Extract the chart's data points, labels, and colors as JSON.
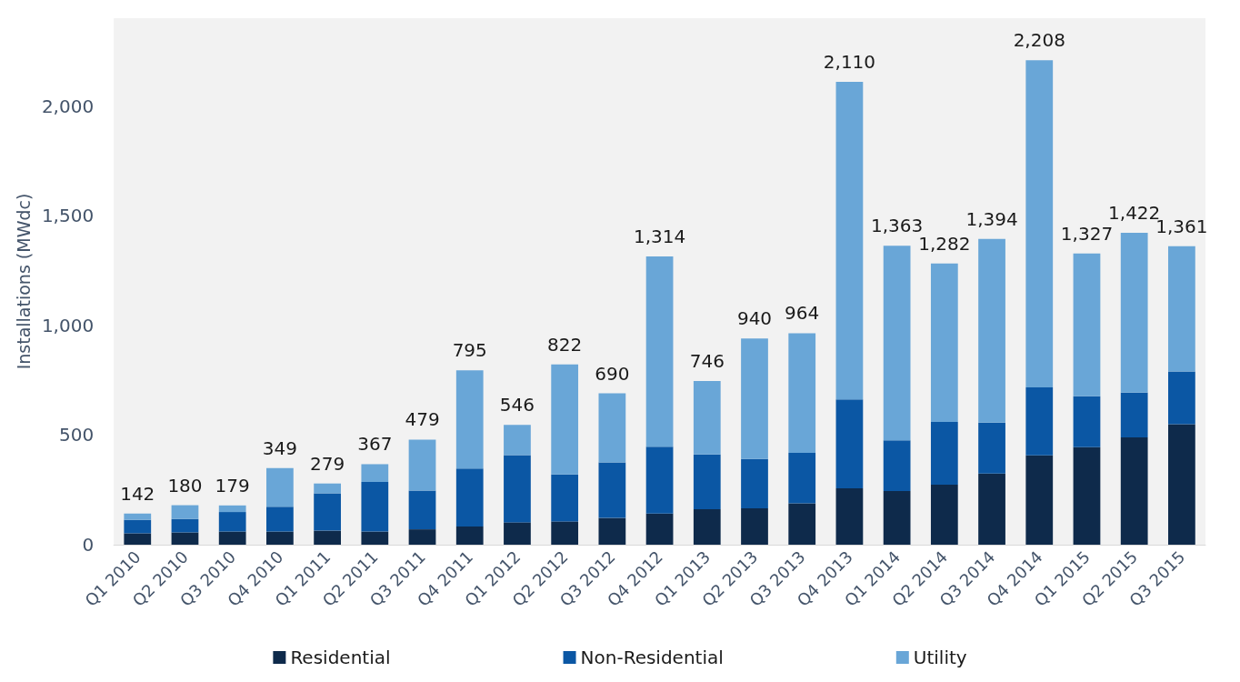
{
  "chart_data": {
    "type": "bar",
    "stacked": true,
    "ylabel": "Installations (MWdc)",
    "categories": [
      "Q1 2010",
      "Q2 2010",
      "Q3 2010",
      "Q4 2010",
      "Q1 2011",
      "Q2 2011",
      "Q3 2011",
      "Q4 2011",
      "Q1 2012",
      "Q2 2012",
      "Q3 2012",
      "Q4 2012",
      "Q1 2013",
      "Q2 2013",
      "Q3 2013",
      "Q4 2013",
      "Q1 2014",
      "Q2 2014",
      "Q3 2014",
      "Q4 2014",
      "Q1 2015",
      "Q2 2015",
      "Q3 2015"
    ],
    "series": [
      {
        "name": "Residential",
        "color": "#0e2a4b",
        "values": [
          52,
          56,
          60,
          60,
          64,
          60,
          70,
          83,
          102,
          106,
          122,
          142,
          162,
          166,
          189,
          257,
          245,
          274,
          324,
          407,
          445,
          489,
          549
        ]
      },
      {
        "name": "Non-Residential",
        "color": "#0b57a4",
        "values": [
          61,
          61,
          89,
          113,
          170,
          226,
          177,
          264,
          306,
          214,
          253,
          305,
          249,
          225,
          230,
          405,
          231,
          286,
          232,
          310,
          232,
          204,
          241
        ]
      },
      {
        "name": "Utility",
        "color": "#69a6d7",
        "values": [
          29,
          63,
          30,
          176,
          45,
          81,
          232,
          448,
          138,
          502,
          315,
          867,
          335,
          549,
          545,
          1448,
          887,
          722,
          838,
          1491,
          650,
          729,
          571
        ]
      }
    ],
    "totals": [
      "142",
      "180",
      "179",
      "349",
      "279",
      "367",
      "479",
      "795",
      "546",
      "822",
      "690",
      "1,314",
      "746",
      "940",
      "964",
      "2,110",
      "1,363",
      "1,282",
      "1,394",
      "2,208",
      "1,327",
      "1,422",
      "1,361"
    ],
    "ylim": [
      0,
      2400
    ],
    "yticks": [
      0,
      500,
      {
        "value": 1000,
        "label": "1,000"
      },
      {
        "value": 1500,
        "label": "1,500"
      },
      {
        "value": 2000,
        "label": "2,000"
      }
    ],
    "grid": false,
    "legend": "bottom"
  }
}
